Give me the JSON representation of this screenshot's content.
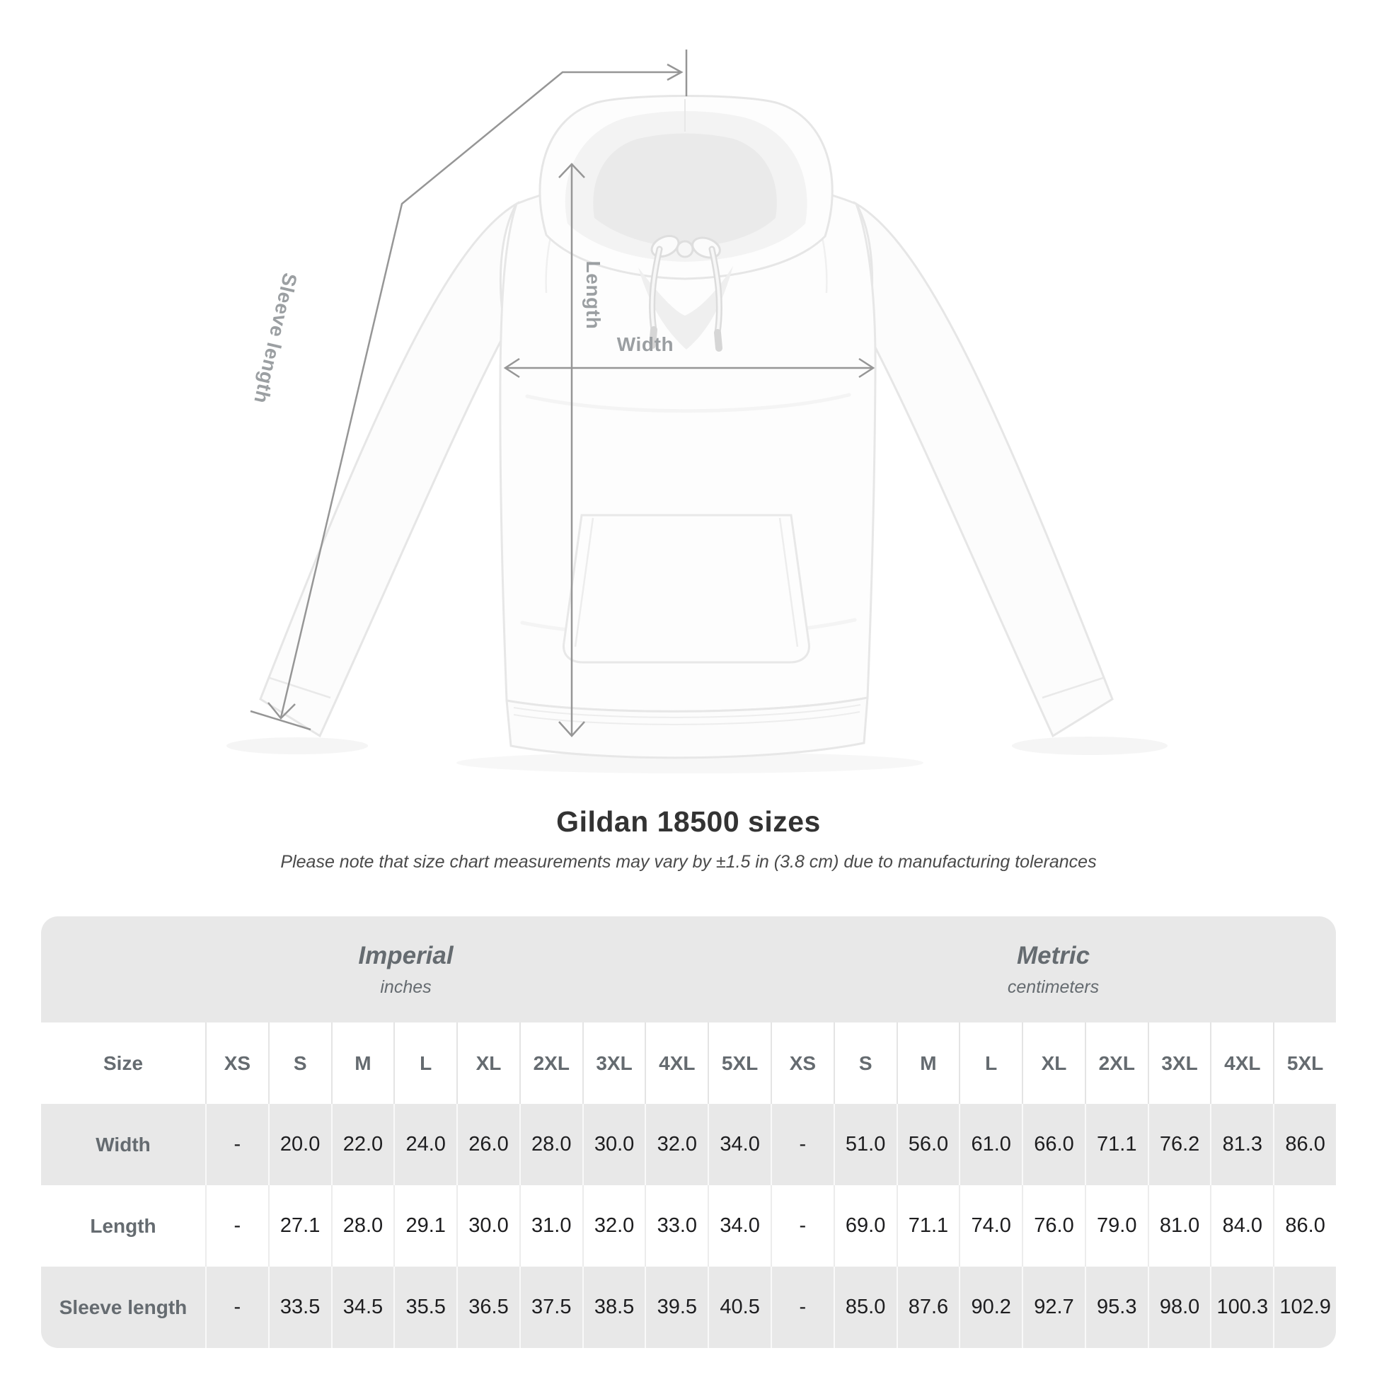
{
  "heading": {
    "title": "Gildan 18500 sizes",
    "note": "Please note that size chart measurements may vary by ±1.5 in (3.8 cm) due to manufacturing tolerances"
  },
  "diagram": {
    "length_label": "Length",
    "width_label": "Width",
    "sleeve_length_label": "Sleeve length",
    "line_color": "#969696",
    "label_color": "#9b9fa2"
  },
  "chart_data": {
    "type": "table",
    "title": "Gildan 18500 sizes",
    "note": "Please note that size chart measurements may vary by ±1.5 in (3.8 cm) due to manufacturing tolerances",
    "unit_groups": [
      {
        "name": "Imperial",
        "unit": "inches",
        "columns": 9
      },
      {
        "name": "Metric",
        "unit": "centimeters",
        "columns": 9
      }
    ],
    "header": [
      "Size",
      "XS",
      "S",
      "M",
      "L",
      "XL",
      "2XL",
      "3XL",
      "4XL",
      "5XL",
      "XS",
      "S",
      "M",
      "L",
      "XL",
      "2XL",
      "3XL",
      "4XL",
      "5XL"
    ],
    "rows": [
      {
        "label": "Width",
        "values": [
          "-",
          "20.0",
          "22.0",
          "24.0",
          "26.0",
          "28.0",
          "30.0",
          "32.0",
          "34.0",
          "-",
          "51.0",
          "56.0",
          "61.0",
          "66.0",
          "71.1",
          "76.2",
          "81.3",
          "86.0"
        ]
      },
      {
        "label": "Length",
        "values": [
          "-",
          "27.1",
          "28.0",
          "29.1",
          "30.0",
          "31.0",
          "32.0",
          "33.0",
          "34.0",
          "-",
          "69.0",
          "71.1",
          "74.0",
          "76.0",
          "79.0",
          "81.0",
          "84.0",
          "86.0"
        ]
      },
      {
        "label": "Sleeve length",
        "values": [
          "-",
          "33.5",
          "34.5",
          "35.5",
          "36.5",
          "37.5",
          "38.5",
          "39.5",
          "40.5",
          "-",
          "85.0",
          "87.6",
          "90.2",
          "92.7",
          "95.3",
          "98.0",
          "100.3",
          "102.9"
        ]
      }
    ],
    "colors": {
      "band": "#e8e8e8",
      "header_text": "#656b70",
      "value_text": "#1d1d1f"
    }
  }
}
